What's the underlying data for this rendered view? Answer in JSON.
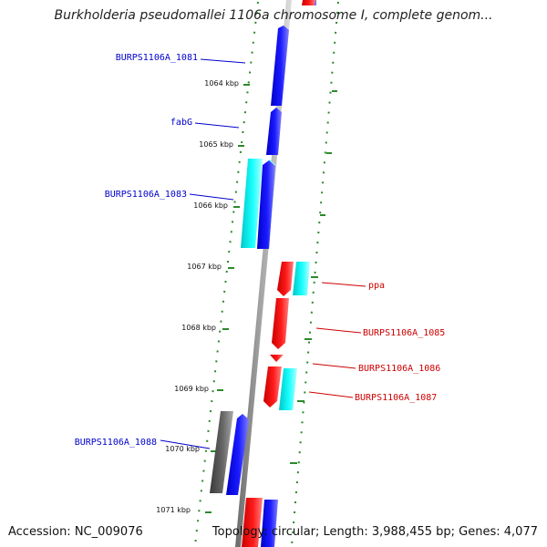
{
  "title": "Burkholderia pseudomallei 1106a chromosome I, complete genom...",
  "footer": {
    "accession": "Accession: NC_009076",
    "summary": "Topology: circular; Length: 3,988,455 bp; Genes: 4,077"
  },
  "colors": {
    "forward_gene": "#0000ff",
    "reverse_gene": "#ff0000",
    "other_gene": "#00e5e5",
    "pseudo_gene": "#555555",
    "tick_marks": "#2a8a2a",
    "backbone": "#8c8c8c",
    "label_forward": "#0000cc",
    "label_reverse": "#cc0000"
  },
  "ticks": [
    "1064 kbp",
    "1065 kbp",
    "1066 kbp",
    "1067 kbp",
    "1068 kbp",
    "1069 kbp",
    "1070 kbp",
    "1071 kbp"
  ],
  "gene_labels": {
    "forward": [
      "BURPS1106A_1081",
      "fabG",
      "BURPS1106A_1083",
      "BURPS1106A_1088"
    ],
    "reverse": [
      "ppa",
      "BURPS1106A_1085",
      "BURPS1106A_1086",
      "BURPS1106A_1087"
    ]
  }
}
